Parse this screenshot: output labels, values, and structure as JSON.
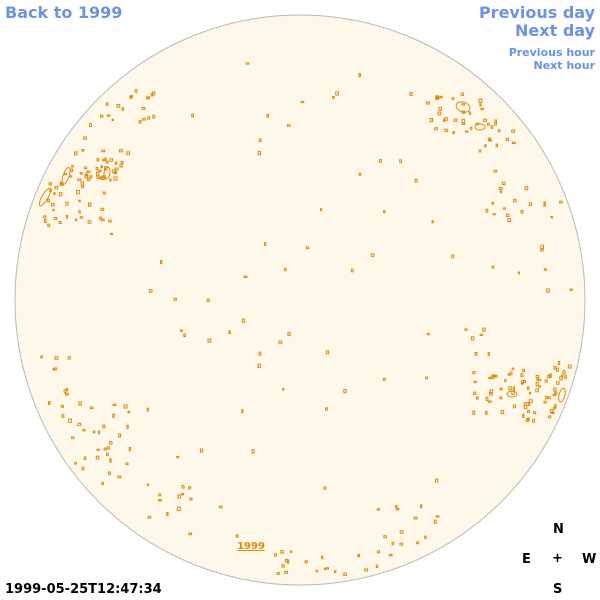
{
  "nav": {
    "back_label": "Back to 1999",
    "prev_day_label": "Previous day",
    "next_day_label": "Next day",
    "prev_hour_label": "Previous hour",
    "next_hour_label": "Next hour"
  },
  "disk": {
    "year_label": "1999"
  },
  "timestamp": "1999-05-25T12:47:34",
  "compass": {
    "north": "N",
    "east": "E",
    "center": "+",
    "west": "W",
    "south": "S"
  },
  "colors": {
    "disk_fill": "#fdf8ea",
    "disk_outline": "#b8b8b8",
    "feature": "#e08a0c",
    "link": "#6b93e0"
  }
}
